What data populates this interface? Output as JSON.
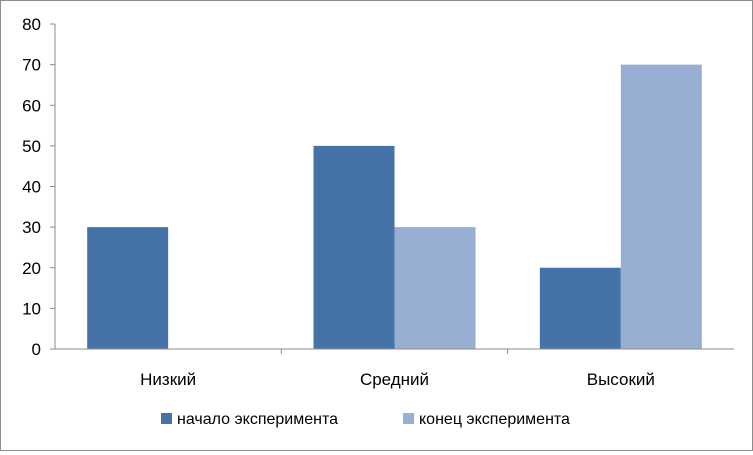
{
  "chart_data": {
    "type": "bar",
    "title": "",
    "xlabel": "",
    "ylabel": "",
    "categories": [
      "Низкий",
      "Средний",
      "Высокий"
    ],
    "series": [
      {
        "name": "начало эксперимента",
        "values": [
          30,
          50,
          20
        ],
        "color": "#4573A7"
      },
      {
        "name": "конец эксперимента",
        "values": [
          0,
          30,
          70
        ],
        "color": "#98AFD3"
      }
    ],
    "ylim": [
      0,
      80
    ],
    "yticks": [
      "0",
      "10",
      "20",
      "30",
      "40",
      "50",
      "60",
      "70",
      "80"
    ],
    "grid": false,
    "legend": "bottom"
  }
}
